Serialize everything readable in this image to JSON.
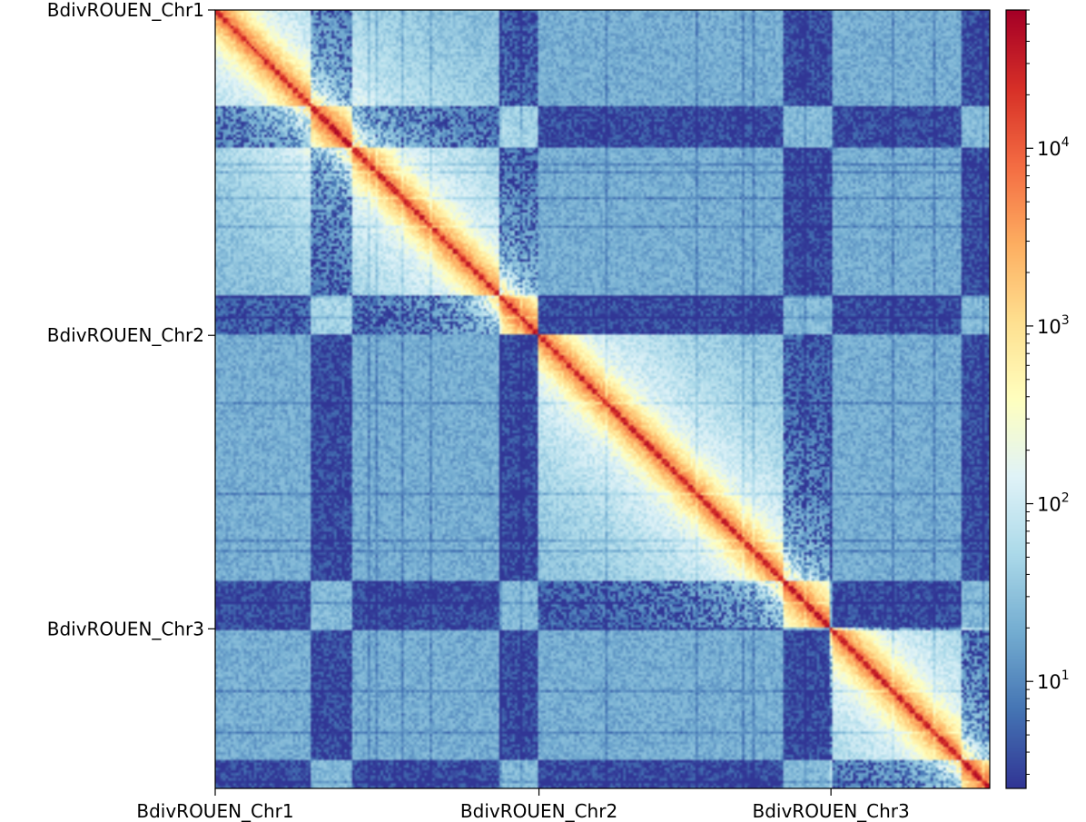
{
  "chart_data": {
    "type": "heatmap",
    "title": "",
    "xlabel": "",
    "ylabel": "",
    "chromosomes": [
      {
        "name": "BdivROUEN_Chr1",
        "start": 0.0,
        "end": 0.418
      },
      {
        "name": "BdivROUEN_Chr2",
        "start": 0.418,
        "end": 0.795
      },
      {
        "name": "BdivROUEN_Chr3",
        "start": 0.795,
        "end": 1.0
      }
    ],
    "x_tick_labels": [
      "BdivROUEN_Chr1",
      "BdivROUEN_Chr2",
      "BdivROUEN_Chr3"
    ],
    "y_tick_labels": [
      "BdivROUEN_Chr1",
      "BdivROUEN_Chr2",
      "BdivROUEN_Chr3"
    ],
    "x_tick_positions": [
      0.0,
      0.418,
      0.795
    ],
    "depleted_bands": [
      {
        "start": 0.122,
        "end": 0.178
      },
      {
        "start": 0.368,
        "end": 0.418
      },
      {
        "start": 0.734,
        "end": 0.795
      },
      {
        "start": 0.965,
        "end": 1.0
      }
    ],
    "colorbar": {
      "scale": "log",
      "range": [
        2.5,
        60000
      ],
      "ticks": [
        10,
        100,
        1000,
        10000
      ],
      "tick_labels": [
        {
          "base": "10",
          "exp": "1"
        },
        {
          "base": "10",
          "exp": "2"
        },
        {
          "base": "10",
          "exp": "3"
        },
        {
          "base": "10",
          "exp": "4"
        }
      ],
      "colormap": [
        "#313695",
        "#4575b4",
        "#74add1",
        "#abd9e9",
        "#e0f3f8",
        "#ffffbf",
        "#fee090",
        "#fdae61",
        "#f46d43",
        "#d73027",
        "#a50026"
      ]
    },
    "grid": false,
    "legend": "none"
  }
}
